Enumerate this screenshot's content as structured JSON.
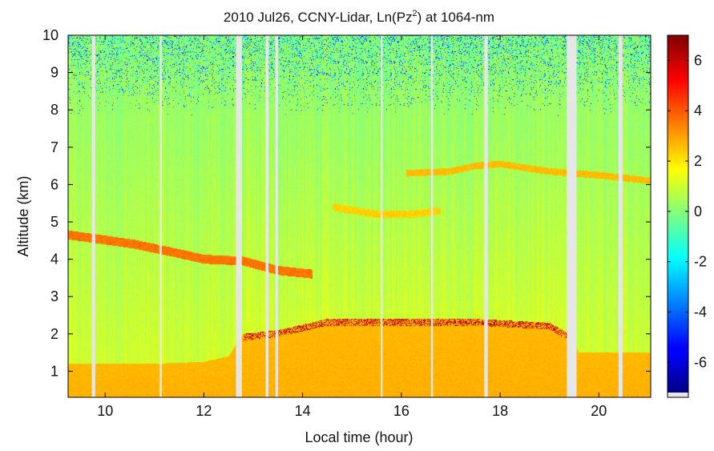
{
  "chart_data": {
    "type": "heatmap",
    "title_parts": {
      "prefix": "2010 Jul26, CCNY-Lidar, Ln(Pz",
      "sup": "2",
      "suffix": ") at 1064-nm"
    },
    "xlabel": "Local time (hour)",
    "ylabel": "Altitude (km)",
    "xlim": [
      9.25,
      21.05
    ],
    "ylim": [
      0.3,
      10
    ],
    "xticks": [
      10,
      12,
      14,
      16,
      18,
      20
    ],
    "yticks": [
      1,
      2,
      3,
      4,
      5,
      6,
      7,
      8,
      9,
      10
    ],
    "colorbar": {
      "min": -7.2,
      "max": 7.0,
      "ticks": [
        -6,
        -4,
        -2,
        0,
        2,
        4,
        6
      ],
      "tick_labels": [
        "-6",
        "-4",
        "-2",
        "0",
        "2",
        "4",
        "6"
      ]
    },
    "data_gaps_hours": [
      [
        9.73,
        9.8
      ],
      [
        11.1,
        11.15
      ],
      [
        12.65,
        12.77
      ],
      [
        13.25,
        13.31
      ],
      [
        13.45,
        13.5
      ],
      [
        15.58,
        15.62
      ],
      [
        16.6,
        16.64
      ],
      [
        17.68,
        17.75
      ],
      [
        19.35,
        19.55
      ],
      [
        20.4,
        20.48
      ]
    ],
    "background_levels": {
      "upper_clear_air": 0.3,
      "mid_clear_air": 1.0
    },
    "layers": [
      {
        "name": "planetary boundary layer",
        "top_km": [
          [
            9.25,
            1.2
          ],
          [
            11.0,
            1.2
          ],
          [
            12.0,
            1.25
          ],
          [
            12.5,
            1.4
          ],
          [
            12.8,
            2.0
          ],
          [
            13.5,
            2.1
          ],
          [
            14.5,
            2.4
          ],
          [
            16.0,
            2.4
          ],
          [
            17.5,
            2.4
          ],
          [
            19.0,
            2.3
          ],
          [
            19.4,
            2.0
          ],
          [
            19.6,
            1.5
          ],
          [
            21.05,
            1.5
          ]
        ],
        "value": 2.8
      },
      {
        "name": "aerosol layer ~4 km",
        "points_km": [
          [
            9.25,
            4.65
          ],
          [
            9.8,
            4.55
          ],
          [
            10.6,
            4.4
          ],
          [
            11.5,
            4.15
          ],
          [
            12.0,
            4.0
          ],
          [
            12.8,
            3.95
          ],
          [
            13.5,
            3.7
          ],
          [
            14.2,
            3.6
          ]
        ],
        "value": 3.6
      },
      {
        "name": "cloud layer ~6 km",
        "points_km": [
          [
            16.1,
            6.3
          ],
          [
            17.0,
            6.35
          ],
          [
            17.5,
            6.5
          ],
          [
            18.0,
            6.55
          ],
          [
            19.0,
            6.35
          ],
          [
            20.0,
            6.25
          ],
          [
            21.05,
            6.1
          ]
        ],
        "value": 2.6
      },
      {
        "name": "elevated layer ~5 km",
        "points_km": [
          [
            14.6,
            5.4
          ],
          [
            15.5,
            5.2
          ],
          [
            16.2,
            5.2
          ],
          [
            16.8,
            5.3
          ]
        ],
        "value": 2.3
      }
    ]
  }
}
